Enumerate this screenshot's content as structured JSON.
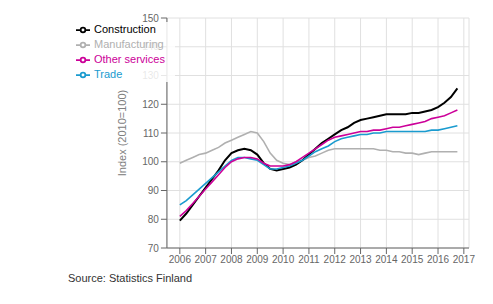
{
  "chart_data": {
    "type": "line",
    "title": "",
    "ylabel": "Index (2010=100)",
    "annotations": [
      "Source: Statistics Finland"
    ],
    "x": [
      2006.0,
      2006.25,
      2006.5,
      2006.75,
      2007.0,
      2007.25,
      2007.5,
      2007.75,
      2008.0,
      2008.25,
      2008.5,
      2008.75,
      2009.0,
      2009.25,
      2009.5,
      2009.75,
      2010.0,
      2010.25,
      2010.5,
      2010.75,
      2011.0,
      2011.25,
      2011.5,
      2011.75,
      2012.0,
      2012.25,
      2012.5,
      2012.75,
      2013.0,
      2013.25,
      2013.5,
      2013.75,
      2014.0,
      2014.25,
      2014.5,
      2014.75,
      2015.0,
      2015.25,
      2015.5,
      2015.75,
      2016.0,
      2016.25,
      2016.5,
      2016.75
    ],
    "series": [
      {
        "name": "Manufacturing",
        "color": "#b0b0b0",
        "values": [
          99.5,
          100.5,
          101.5,
          102.5,
          103.0,
          104.0,
          105.0,
          106.5,
          107.5,
          108.5,
          109.5,
          110.5,
          110.0,
          107.0,
          103.0,
          100.5,
          99.5,
          99.0,
          100.0,
          100.5,
          101.5,
          102.0,
          103.0,
          104.0,
          104.5,
          104.5,
          104.5,
          104.5,
          104.5,
          104.5,
          104.5,
          104.0,
          104.0,
          103.5,
          103.5,
          103.0,
          103.0,
          102.5,
          103.0,
          103.5,
          103.5,
          103.5,
          103.5,
          103.5
        ]
      },
      {
        "name": "Construction",
        "color": "#000000",
        "values": [
          79.5,
          82.0,
          85.0,
          88.0,
          91.0,
          94.0,
          97.0,
          100.5,
          103.0,
          104.0,
          104.5,
          104.0,
          102.5,
          99.5,
          97.5,
          97.0,
          97.5,
          98.0,
          99.0,
          100.5,
          102.5,
          104.5,
          106.5,
          108.0,
          109.5,
          111.0,
          112.0,
          113.5,
          114.5,
          115.0,
          115.5,
          116.0,
          116.5,
          116.5,
          116.5,
          116.5,
          117.0,
          117.0,
          117.5,
          118.0,
          119.0,
          120.5,
          122.5,
          125.5
        ]
      },
      {
        "name": "Trade",
        "color": "#1a9bcf",
        "values": [
          85.0,
          86.5,
          88.5,
          90.5,
          92.5,
          94.5,
          96.5,
          98.5,
          100.5,
          101.5,
          101.5,
          101.0,
          100.5,
          99.0,
          97.5,
          97.5,
          98.0,
          98.5,
          99.5,
          100.5,
          102.0,
          103.5,
          104.5,
          105.5,
          107.0,
          108.0,
          108.5,
          109.0,
          109.5,
          109.5,
          110.0,
          110.0,
          110.5,
          110.5,
          110.5,
          110.5,
          110.5,
          110.5,
          110.5,
          111.0,
          111.0,
          111.5,
          112.0,
          112.5
        ]
      },
      {
        "name": "Other services",
        "color": "#cc0099",
        "values": [
          81.0,
          83.0,
          85.5,
          88.0,
          90.5,
          93.0,
          95.5,
          98.0,
          100.0,
          101.0,
          101.5,
          101.5,
          101.0,
          99.5,
          98.5,
          98.5,
          98.5,
          99.0,
          100.0,
          101.5,
          103.0,
          104.5,
          106.0,
          107.5,
          108.5,
          109.0,
          109.5,
          110.0,
          110.5,
          110.5,
          111.0,
          111.0,
          111.5,
          112.0,
          112.0,
          112.5,
          113.0,
          113.5,
          114.0,
          115.0,
          115.5,
          116.0,
          117.0,
          118.0
        ]
      }
    ],
    "xlim": [
      2005.5,
      2017.2
    ],
    "xticks": [
      2006,
      2007,
      2008,
      2009,
      2010,
      2011,
      2012,
      2013,
      2014,
      2015,
      2016,
      2017
    ],
    "ylim": [
      70,
      150
    ],
    "yticks": [
      70,
      80,
      90,
      100,
      110,
      120,
      130,
      140,
      150
    ],
    "grid": true,
    "legend": "upper left"
  }
}
